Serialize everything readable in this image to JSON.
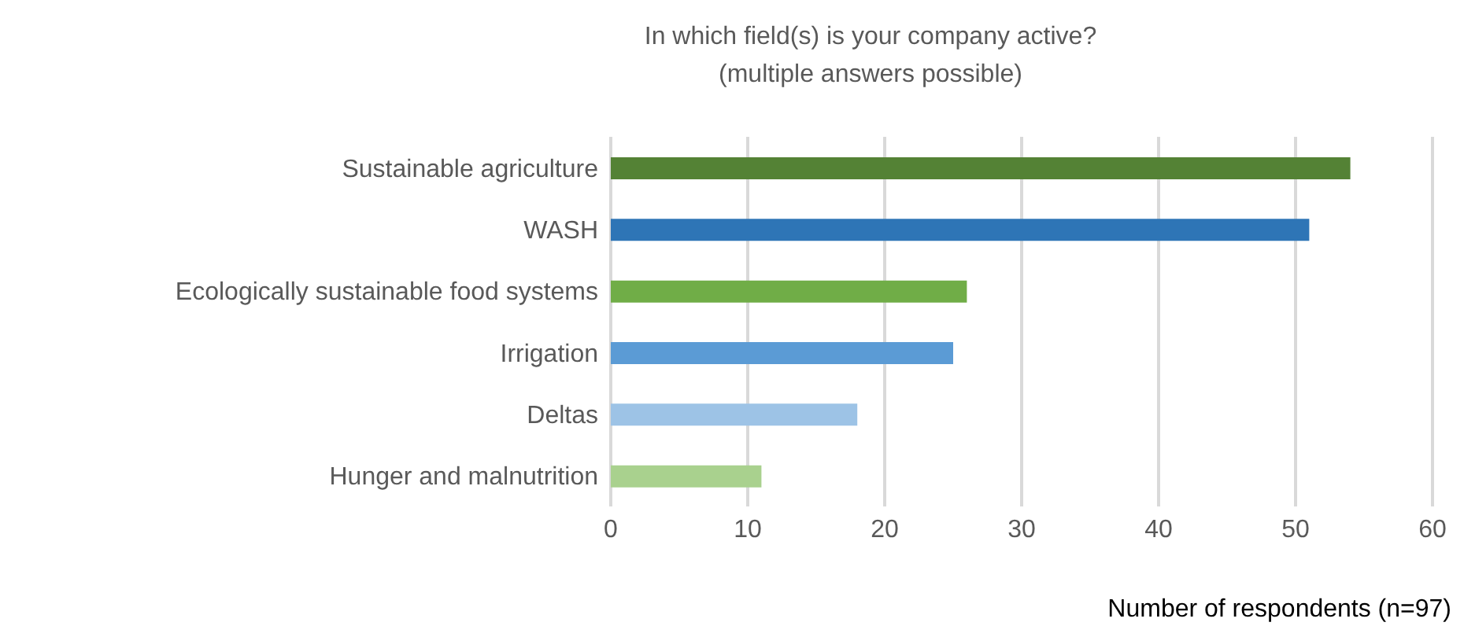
{
  "chart_data": {
    "type": "bar",
    "orientation": "horizontal",
    "title": "In which field(s) is your company active?\n(multiple answers possible)",
    "xlabel": "Number of respondents (n=97)",
    "categories": [
      "Sustainable agriculture",
      "WASH",
      "Ecologically sustainable food systems",
      "Irrigation",
      "Deltas",
      "Hunger and malnutrition"
    ],
    "values": [
      54,
      51,
      26,
      25,
      18,
      11
    ],
    "colors": [
      "#548235",
      "#2e75b6",
      "#70ad47",
      "#5b9bd5",
      "#9dc3e6",
      "#a9d18e"
    ],
    "xlim": [
      0,
      60
    ],
    "xticks": [
      0,
      10,
      20,
      30,
      40,
      50,
      60
    ],
    "grid": "x",
    "legend": false
  }
}
